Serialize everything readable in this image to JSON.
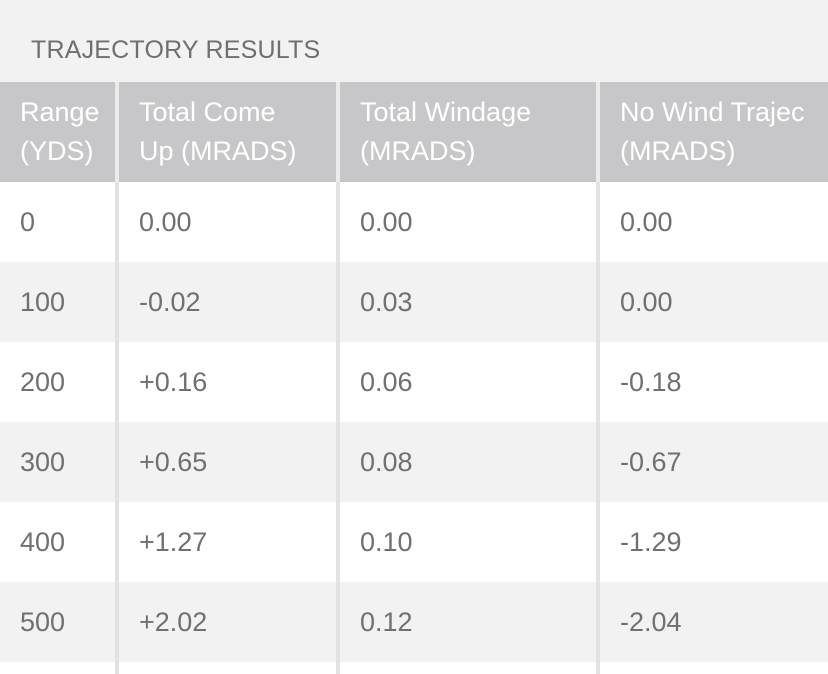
{
  "section": {
    "title": "TRAJECTORY RESULTS"
  },
  "table": {
    "headers": [
      "Range\n(YDS)",
      "Total Come\nUp (MRADS)",
      "Total Windage\n(MRADS)",
      "No Wind Trajec\n(MRADS)"
    ],
    "rows": [
      [
        "0",
        "0.00",
        "0.00",
        "0.00"
      ],
      [
        "100",
        "-0.02",
        "0.03",
        "0.00"
      ],
      [
        "200",
        "+0.16",
        "0.06",
        "-0.18"
      ],
      [
        "300",
        "+0.65",
        "0.08",
        "-0.67"
      ],
      [
        "400",
        "+1.27",
        "0.10",
        "-1.29"
      ],
      [
        "500",
        "+2.02",
        "0.12",
        "-2.04"
      ]
    ]
  },
  "colors": {
    "header_bg": "#c7c7c9",
    "row_alt_bg": "#f2f2f2",
    "row_bg": "#ffffff",
    "text": "#707070"
  }
}
